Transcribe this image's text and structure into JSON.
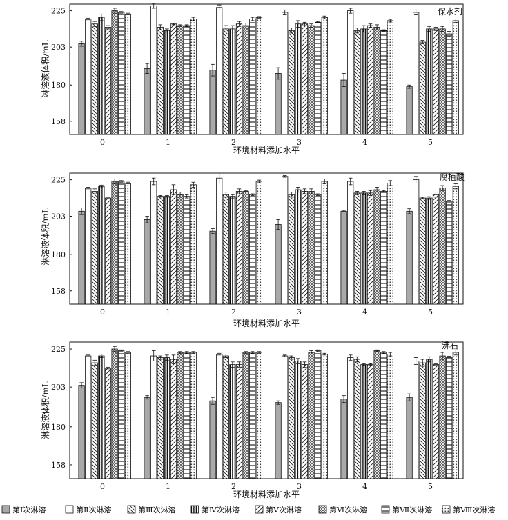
{
  "chart_data": [
    {
      "type": "bar",
      "title": "保水剂",
      "xlabel": "环境材料添加水平",
      "ylabel": "淋溶液体积/mL",
      "categories": [
        "0",
        "1",
        "2",
        "3",
        "4",
        "5"
      ],
      "yticks": [
        158,
        180,
        203,
        225
      ],
      "ylim": [
        150,
        229
      ],
      "series": [
        {
          "name": "第Ⅰ次淋溶",
          "values": [
            205,
            190,
            189,
            187,
            183,
            179
          ],
          "errors": [
            1.5,
            3,
            3.5,
            3.5,
            4,
            1
          ]
        },
        {
          "name": "第Ⅱ次淋溶",
          "values": [
            220,
            228,
            227,
            224,
            225,
            224
          ],
          "errors": [
            0.5,
            1.5,
            1.5,
            1.5,
            1.5,
            1.5
          ]
        },
        {
          "name": "第Ⅲ次淋溶",
          "values": [
            217,
            215,
            214,
            213,
            213,
            206
          ],
          "errors": [
            1.5,
            1.5,
            2,
            1.5,
            1.5,
            1
          ]
        },
        {
          "name": "第Ⅳ次淋溶",
          "values": [
            221,
            213,
            214,
            217,
            214,
            214
          ],
          "errors": [
            2,
            1,
            2,
            2,
            2,
            1.5
          ]
        },
        {
          "name": "第Ⅴ次淋溶",
          "values": [
            215,
            217,
            217,
            217,
            216,
            214
          ],
          "errors": [
            1,
            0.5,
            1.5,
            1,
            1,
            1
          ]
        },
        {
          "name": "第Ⅵ次淋溶",
          "values": [
            225,
            216,
            216,
            216,
            215,
            214
          ],
          "errors": [
            1.5,
            0.5,
            1.5,
            1,
            1.5,
            1.5
          ]
        },
        {
          "name": "第Ⅶ次淋溶",
          "values": [
            224,
            216,
            220,
            218,
            213,
            211
          ],
          "errors": [
            0.5,
            0.5,
            1,
            0.5,
            0.5,
            1.5
          ]
        },
        {
          "name": "第Ⅷ次淋溶",
          "values": [
            223,
            220,
            221,
            221,
            219,
            219
          ],
          "errors": [
            0.5,
            1,
            0.5,
            0.8,
            0.8,
            1
          ]
        }
      ]
    },
    {
      "type": "bar",
      "title": "腐植酸",
      "xlabel": "环境材料添加水平",
      "ylabel": "淋溶液体积/mL",
      "categories": [
        "0",
        "1",
        "2",
        "3",
        "4",
        "5"
      ],
      "yticks": [
        158,
        180,
        203,
        225
      ],
      "ylim": [
        150,
        229
      ],
      "series": [
        {
          "name": "第Ⅰ次淋溶",
          "values": [
            206,
            201,
            194,
            198,
            206,
            206
          ],
          "errors": [
            2,
            2,
            1.5,
            3,
            0.5,
            1.5
          ]
        },
        {
          "name": "第Ⅱ次淋溶",
          "values": [
            220,
            224,
            226,
            227,
            224,
            225
          ],
          "errors": [
            0.5,
            2,
            3,
            0.5,
            2,
            2
          ]
        },
        {
          "name": "第Ⅲ次淋溶",
          "values": [
            218,
            215,
            216,
            216,
            217,
            214
          ],
          "errors": [
            1.5,
            0.5,
            1.5,
            1.5,
            1,
            0.5
          ]
        },
        {
          "name": "第Ⅳ次淋溶",
          "values": [
            221,
            215,
            215,
            219,
            217,
            214
          ],
          "errors": [
            0.8,
            0.5,
            1,
            1.5,
            1,
            0.8
          ]
        },
        {
          "name": "第Ⅴ次淋溶",
          "values": [
            214,
            219,
            218,
            218,
            217,
            216
          ],
          "errors": [
            0.5,
            3,
            1.5,
            1.5,
            1.5,
            1.5
          ]
        },
        {
          "name": "第Ⅵ次淋溶",
          "values": [
            224,
            216,
            218,
            218,
            219,
            220
          ],
          "errors": [
            1.5,
            1.5,
            0.5,
            1.5,
            1.5,
            1.5
          ]
        },
        {
          "name": "第Ⅶ次淋溶",
          "values": [
            224,
            215,
            216,
            216,
            218,
            212
          ],
          "errors": [
            0.5,
            1,
            0.5,
            0.5,
            0.5,
            0.5
          ]
        },
        {
          "name": "第Ⅷ次淋溶",
          "values": [
            223,
            222,
            224,
            224,
            223,
            221
          ],
          "errors": [
            0.5,
            1.5,
            0.8,
            1.5,
            1.5,
            1.5
          ]
        }
      ]
    },
    {
      "type": "bar",
      "title": "沸石",
      "xlabel": "环境材料添加水平",
      "ylabel": "淋溶液体积/mL",
      "categories": [
        "0",
        "1",
        "2",
        "3",
        "4",
        "5"
      ],
      "yticks": [
        158,
        180,
        203,
        225
      ],
      "ylim": [
        150,
        229
      ],
      "series": [
        {
          "name": "第Ⅰ次淋溶",
          "values": [
            204,
            197,
            195,
            194,
            196,
            197
          ],
          "errors": [
            1.5,
            1,
            2,
            1,
            2,
            2
          ]
        },
        {
          "name": "第Ⅱ次淋溶",
          "values": [
            221,
            221,
            222,
            221,
            220,
            218
          ],
          "errors": [
            0.5,
            3,
            0.5,
            0.5,
            1.5,
            2
          ]
        },
        {
          "name": "第Ⅲ次淋溶",
          "values": [
            217,
            220,
            221,
            220,
            219,
            217
          ],
          "errors": [
            1.5,
            1,
            1,
            1,
            1.5,
            2
          ]
        },
        {
          "name": "第Ⅳ次淋溶",
          "values": [
            221,
            220,
            216,
            218,
            216,
            219
          ],
          "errors": [
            1,
            1.5,
            1.5,
            1.5,
            0.5,
            1.5
          ]
        },
        {
          "name": "第Ⅴ次淋溶",
          "values": [
            214,
            219,
            216,
            216,
            216,
            216
          ],
          "errors": [
            0.5,
            2.5,
            1.5,
            1.5,
            0.5,
            0.5
          ]
        },
        {
          "name": "第Ⅵ次淋溶",
          "values": [
            225,
            223,
            223,
            223,
            224,
            221
          ],
          "errors": [
            1.5,
            0.5,
            0.5,
            1,
            0.5,
            2
          ]
        },
        {
          "name": "第Ⅶ次淋溶",
          "values": [
            224,
            223,
            223,
            224,
            223,
            220
          ],
          "errors": [
            0.5,
            0.5,
            0.5,
            0.5,
            0.5,
            0.8
          ]
        },
        {
          "name": "第Ⅷ次淋溶",
          "values": [
            223,
            223,
            223,
            222,
            222,
            223
          ],
          "errors": [
            0.5,
            0.5,
            0.5,
            0.5,
            1,
            1.5
          ]
        }
      ]
    }
  ],
  "legend": {
    "position": "bottom",
    "items": [
      "第Ⅰ次淋溶",
      "第Ⅱ次淋溶",
      "第Ⅲ次淋溶",
      "第Ⅳ次淋溶",
      "第Ⅴ次淋溶",
      "第Ⅵ次淋溶",
      "第Ⅶ次淋溶",
      "第Ⅷ次淋溶"
    ]
  },
  "pattern_icons": [
    "solid-gray",
    "empty",
    "backslash-hatch",
    "vertical-stripes",
    "slash-hatch",
    "crosshatch",
    "horizontal-stripes",
    "grid-dots"
  ]
}
